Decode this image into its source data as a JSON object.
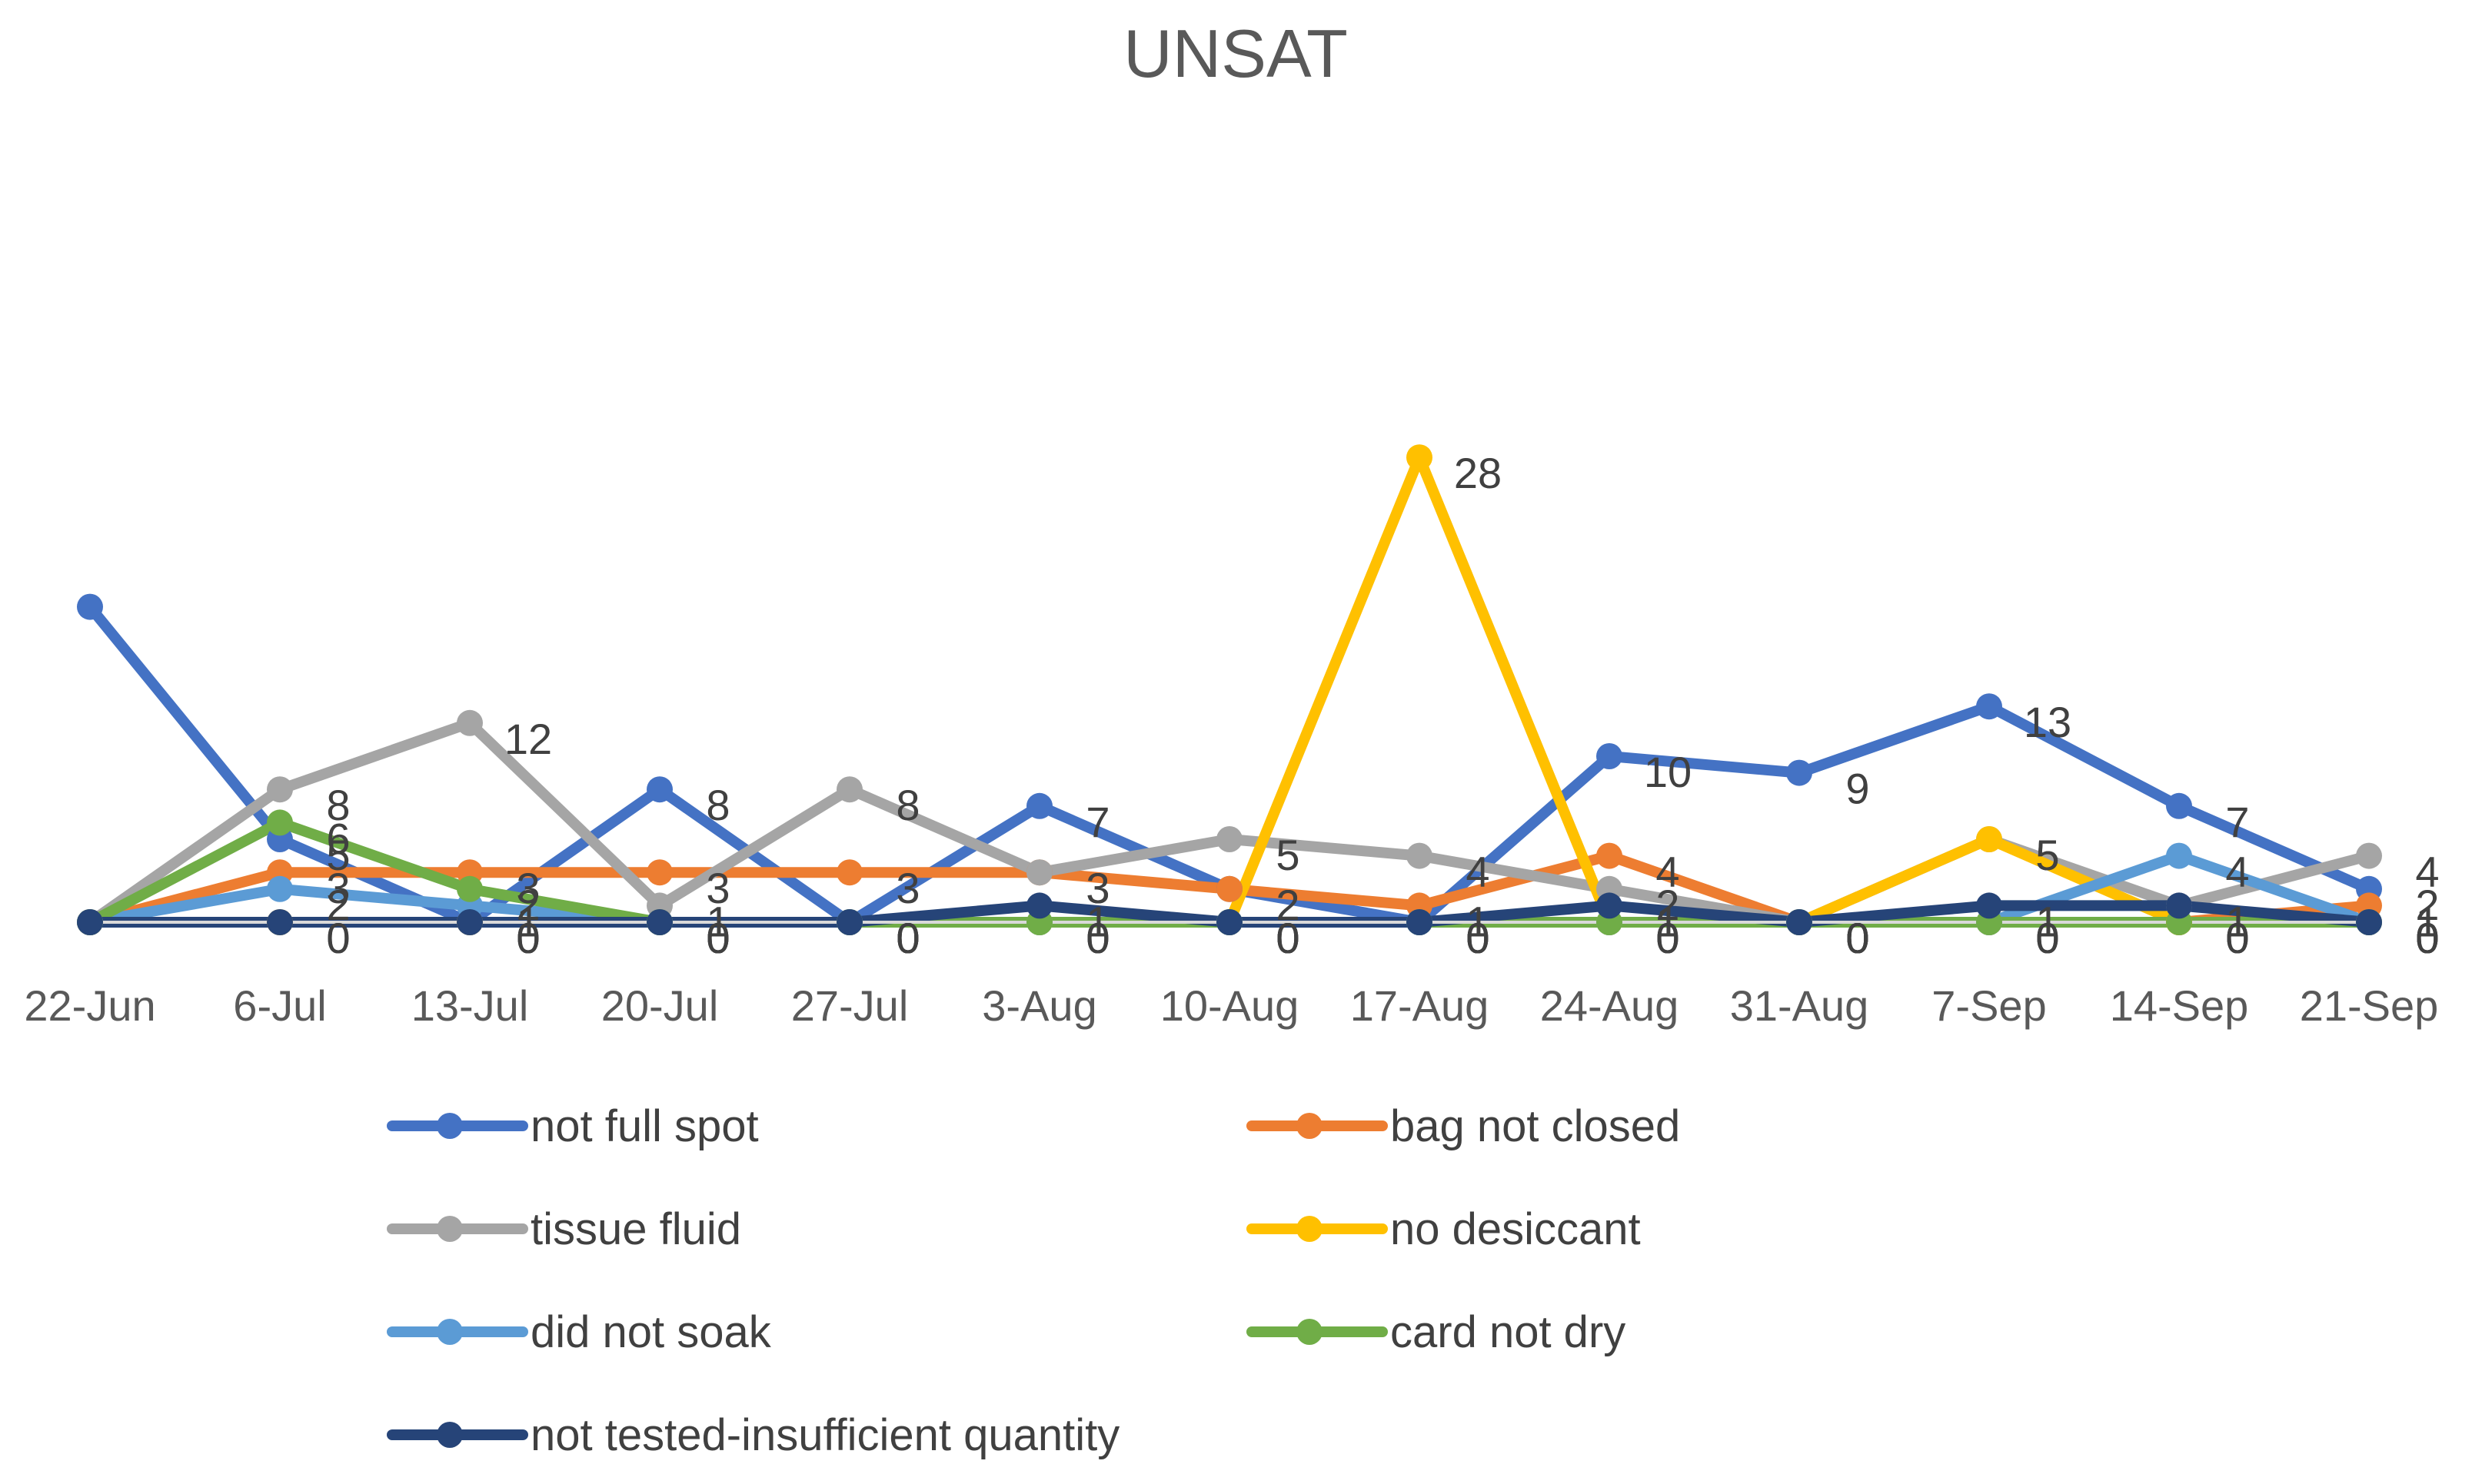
{
  "chart_data": {
    "type": "line",
    "title": "UNSAT",
    "xlabel": "",
    "ylabel": "",
    "ylim": [
      0,
      30
    ],
    "grid": false,
    "legend_position": "bottom",
    "categories": [
      "22-Jun",
      "6-Jul",
      "13-Jul",
      "20-Jul",
      "27-Jul",
      "3-Aug",
      "10-Aug",
      "17-Aug",
      "24-Aug",
      "31-Aug",
      "7-Sep",
      "14-Sep",
      "21-Sep"
    ],
    "series": [
      {
        "name": "not full spot",
        "color": "#4472c4",
        "values": [
          19,
          5,
          0,
          8,
          0,
          7,
          2,
          0,
          10,
          9,
          13,
          7,
          2
        ]
      },
      {
        "name": "bag not closed",
        "color": "#ed7d31",
        "values": [
          0,
          3,
          3,
          3,
          3,
          3,
          2,
          1,
          4,
          0,
          0,
          0,
          1
        ]
      },
      {
        "name": "tissue fluid",
        "color": "#a5a5a5",
        "values": [
          0,
          8,
          12,
          1,
          8,
          3,
          5,
          4,
          2,
          0,
          5,
          1,
          4
        ]
      },
      {
        "name": "no desiccant",
        "color": "#ffc000",
        "values": [
          0,
          0,
          0,
          0,
          0,
          0,
          0,
          28,
          0,
          0,
          5,
          0,
          0
        ]
      },
      {
        "name": "did not soak",
        "color": "#5b9bd5",
        "values": [
          0,
          2,
          1,
          0,
          0,
          0,
          0,
          0,
          0,
          0,
          0,
          4,
          0
        ]
      },
      {
        "name": "card not dry",
        "color": "#70ad47",
        "values": [
          0,
          6,
          2,
          0,
          0,
          0,
          0,
          0,
          0,
          0,
          0,
          0,
          0
        ]
      },
      {
        "name": "not tested-insufficient quantity",
        "color": "#264478",
        "values": [
          0,
          0,
          0,
          0,
          0,
          1,
          0,
          0,
          1,
          0,
          1,
          1,
          0
        ]
      }
    ]
  }
}
